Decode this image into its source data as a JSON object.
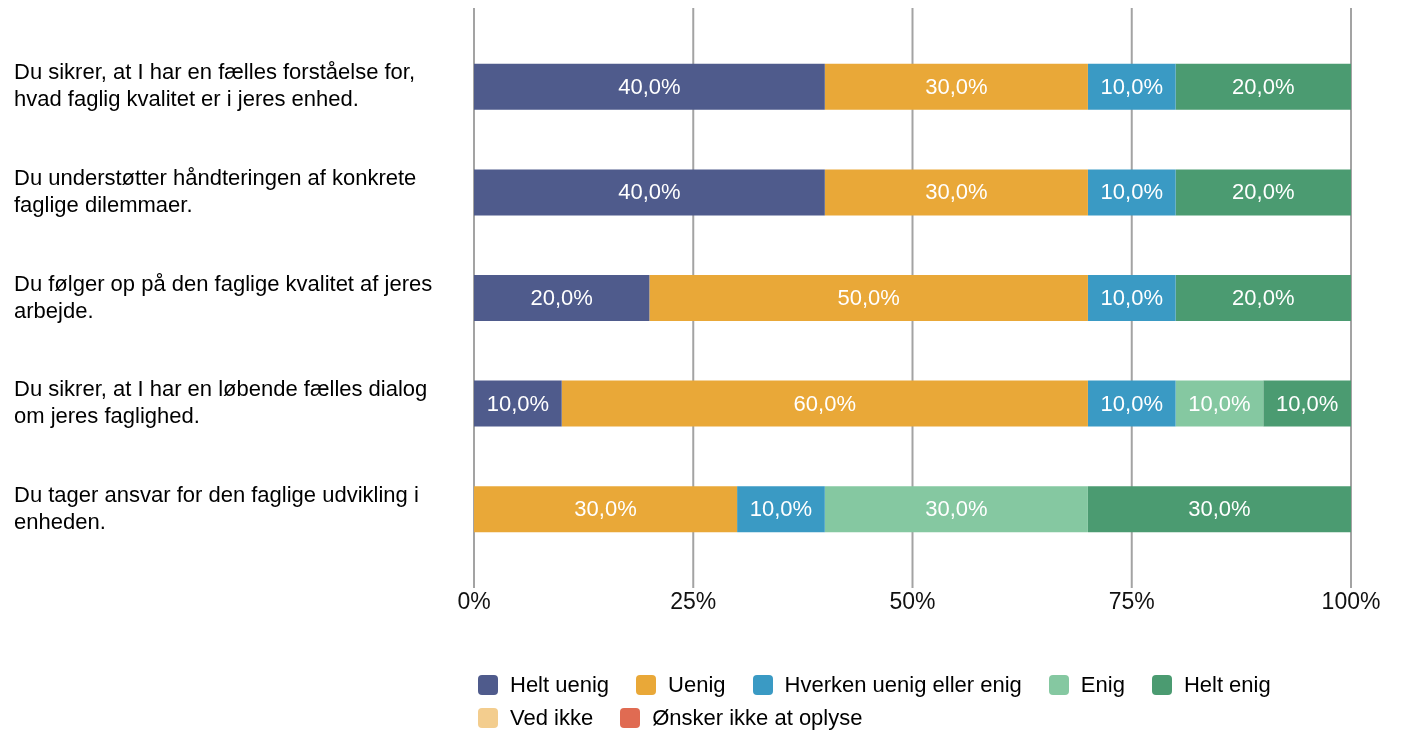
{
  "chart_data": {
    "type": "bar",
    "orientation": "horizontal",
    "stacked": true,
    "categories": [
      "Du sikrer, at I har en fælles forståelse for, hvad faglig kvalitet er i jeres enhed.",
      "Du understøtter håndteringen af konkrete faglige dilemmaer.",
      "Du følger op på den faglige kvalitet af jeres arbejde.",
      "Du sikrer, at I har en løbende fælles dialog om jeres faglighed.",
      "Du tager ansvar for den faglige udvikling i enheden."
    ],
    "series": [
      {
        "name": "Helt uenig",
        "color": "#4f5b8c",
        "values": [
          40,
          40,
          20,
          10,
          0
        ],
        "value_labels": [
          "40,0%",
          "40,0%",
          "20,0%",
          "10,0%",
          null
        ]
      },
      {
        "name": "Uenig",
        "color": "#e9a838",
        "values": [
          30,
          30,
          50,
          60,
          30
        ],
        "value_labels": [
          "30,0%",
          "30,0%",
          "50,0%",
          "60,0%",
          "30,0%"
        ]
      },
      {
        "name": "Hverken uenig eller enig",
        "color": "#3a9ac4",
        "values": [
          10,
          10,
          10,
          10,
          10
        ],
        "value_labels": [
          "10,0%",
          "10,0%",
          "10,0%",
          "10,0%",
          "10,0%"
        ]
      },
      {
        "name": "Enig",
        "color": "#85c8a1",
        "values": [
          0,
          0,
          0,
          10,
          30
        ],
        "value_labels": [
          null,
          null,
          null,
          "10,0%",
          "30,0%"
        ]
      },
      {
        "name": "Helt enig",
        "color": "#4b9b71",
        "values": [
          20,
          20,
          20,
          10,
          30
        ],
        "value_labels": [
          "20,0%",
          "20,0%",
          "20,0%",
          "10,0%",
          "30,0%"
        ]
      },
      {
        "name": "Ved ikke",
        "color": "#f3cd8e",
        "values": [
          0,
          0,
          0,
          0,
          0
        ],
        "value_labels": [
          null,
          null,
          null,
          null,
          null
        ]
      },
      {
        "name": "Ønsker ikke at oplyse",
        "color": "#e06b52",
        "values": [
          0,
          0,
          0,
          0,
          0
        ],
        "value_labels": [
          null,
          null,
          null,
          null,
          null
        ]
      }
    ],
    "xlim": [
      0,
      100
    ],
    "xticks": [
      {
        "value": 0,
        "label": "0%"
      },
      {
        "value": 25,
        "label": "25%"
      },
      {
        "value": 50,
        "label": "50%"
      },
      {
        "value": 75,
        "label": "75%"
      },
      {
        "value": 100,
        "label": "100%"
      }
    ],
    "grid": "x",
    "legend": "bottom"
  }
}
